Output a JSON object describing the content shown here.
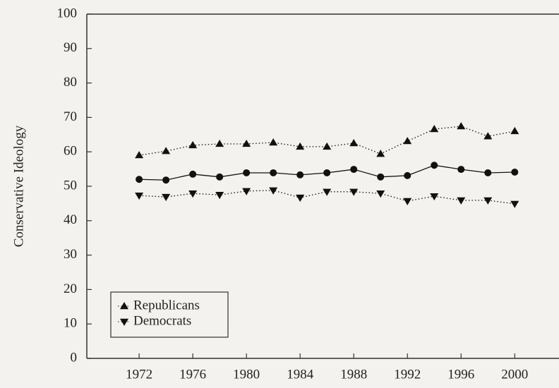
{
  "chart_data": {
    "type": "line",
    "ylabel": "Conservative Ideology",
    "x": [
      1972,
      1974,
      1976,
      1978,
      1980,
      1982,
      1984,
      1986,
      1988,
      1990,
      1992,
      1994,
      1996,
      1998,
      2000
    ],
    "series": [
      {
        "name": "Republicans",
        "color": "#111111",
        "marker": "triangle-up",
        "linestyle": "dotted",
        "values": [
          59.0,
          60.2,
          61.9,
          62.3,
          62.3,
          62.7,
          61.5,
          61.5,
          62.5,
          59.4,
          63.1,
          66.6,
          67.4,
          64.5,
          66.0
        ]
      },
      {
        "color": "#111111",
        "marker": "circle",
        "linestyle": "solid",
        "values": [
          52.0,
          51.8,
          53.5,
          52.7,
          53.9,
          53.9,
          53.3,
          53.9,
          54.9,
          52.7,
          53.1,
          56.1,
          54.9,
          53.9,
          54.1
        ]
      },
      {
        "name": "Democrats",
        "color": "#111111",
        "marker": "triangle-down",
        "linestyle": "dotted",
        "values": [
          47.3,
          46.9,
          47.9,
          47.5,
          48.6,
          48.8,
          46.7,
          48.4,
          48.4,
          47.9,
          45.7,
          47.1,
          45.9,
          45.9,
          44.9
        ]
      }
    ],
    "xlim": [
      1968.1,
      2003.3
    ],
    "xticks": [
      1972,
      1976,
      1980,
      1984,
      1988,
      1992,
      1996,
      2000
    ],
    "ylim": [
      0,
      100
    ],
    "yticks": [
      0,
      10,
      20,
      30,
      40,
      50,
      60,
      70,
      80,
      90,
      100
    ],
    "legend": "lower left",
    "grid": false
  }
}
